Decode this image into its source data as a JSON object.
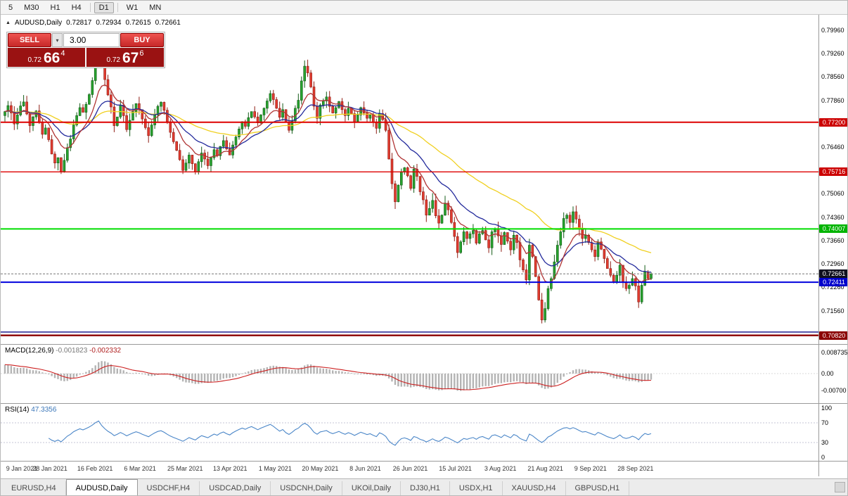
{
  "toolbar": {
    "timeframe_groups": [
      [
        "5",
        "M30",
        "H1",
        "H4"
      ],
      [
        "D1"
      ],
      [
        "W1",
        "MN"
      ]
    ],
    "active_timeframe": "D1"
  },
  "chart_header": {
    "symbol": "AUDUSD,Daily",
    "open": "0.72817",
    "high": "0.72934",
    "low": "0.72615",
    "close": "0.72661"
  },
  "trade_panel": {
    "sell_label": "SELL",
    "buy_label": "BUY",
    "volume": "3.00",
    "sell_price": {
      "prefix": "0.72",
      "big": "66",
      "sup": "4"
    },
    "buy_price": {
      "prefix": "0.72",
      "big": "67",
      "sup": "6"
    }
  },
  "price_axis": {
    "labels": [
      "0.79960",
      "0.79260",
      "0.78560",
      "0.77860",
      "0.77160",
      "0.76460",
      "0.75760",
      "0.75060",
      "0.74360",
      "0.73660",
      "0.72960",
      "0.72260",
      "0.71560"
    ]
  },
  "levels": [
    {
      "value": 0.772,
      "color": "#dd0000",
      "width": 2,
      "badge": "0.77200",
      "badge_bg": "#cc0000"
    },
    {
      "value": 0.75716,
      "color": "#dd0000",
      "width": 1.3,
      "badge": "0.75716",
      "badge_bg": "#cc0000"
    },
    {
      "value": 0.74007,
      "color": "#00dd00",
      "width": 2,
      "badge": "0.74007",
      "badge_bg": "#00b400"
    },
    {
      "value": 0.72411,
      "color": "#0000dd",
      "width": 2,
      "badge": "0.72411",
      "badge_bg": "#0000cc"
    },
    {
      "value": 0.7092,
      "color": "#30309a",
      "width": 1.6
    },
    {
      "value": 0.7082,
      "color": "#8b0000",
      "width": 2.4,
      "badge": "0.70820",
      "badge_bg": "#8b0000"
    }
  ],
  "current_price": {
    "value": 0.72661,
    "label": "0.72661",
    "badge_bg": "#10101e"
  },
  "macd_panel": {
    "name": "MACD(12,26,9)",
    "main_value": "-0.001823",
    "signal_value": "-0.002332",
    "axis": [
      "0.008735",
      "0.00",
      "-0.00700"
    ]
  },
  "rsi_panel": {
    "name": "RSI(14)",
    "value": "47.3356",
    "axis": [
      "100",
      "70",
      "30",
      "0"
    ],
    "levels": [
      70,
      30
    ]
  },
  "date_axis": [
    "9 Jan 2021",
    "28 Jan 2021",
    "16 Feb 2021",
    "6 Mar 2021",
    "25 Mar 2021",
    "13 Apr 2021",
    "1 May 2021",
    "20 May 2021",
    "8 Jun 2021",
    "26 Jun 2021",
    "15 Jul 2021",
    "3 Aug 2021",
    "21 Aug 2021",
    "9 Sep 2021",
    "28 Sep 2021"
  ],
  "tabs": {
    "items": [
      "EURUSD,H4",
      "AUDUSD,Daily",
      "USDCHF,H4",
      "USDCAD,Daily",
      "USDCNH,Daily",
      "UKOil,Daily",
      "DJ30,H1",
      "USDX,H1",
      "XAUUSD,H4",
      "GBPUSD,H1"
    ],
    "active_index": 1
  },
  "chart_data": {
    "type": "candlestick",
    "symbol": "AUDUSD",
    "timeframe": "Daily",
    "price_range": [
      0.7056,
      0.8042
    ],
    "macd_scale_max": 0.011,
    "moving_averages": [
      {
        "period": 55,
        "color": "#f0d020"
      },
      {
        "period": 21,
        "color": "#232a9c"
      },
      {
        "period": 10,
        "color": "#b03434"
      }
    ],
    "colors": {
      "up": "#27a22e",
      "up_border": "#145c18",
      "down": "#e13b2f",
      "down_border": "#8f1d14",
      "macd_hist": "#b4b4b4",
      "macd_signal": "#cc2020",
      "rsi": "#4a86c8"
    },
    "closes": [
      0.7752,
      0.777,
      0.7748,
      0.7715,
      0.7742,
      0.7769,
      0.7781,
      0.7745,
      0.771,
      0.7736,
      0.7754,
      0.772,
      0.7684,
      0.7703,
      0.7668,
      0.7625,
      0.7598,
      0.7614,
      0.7572,
      0.7606,
      0.7644,
      0.767,
      0.7712,
      0.774,
      0.7764,
      0.775,
      0.7774,
      0.7803,
      0.7845,
      0.7905,
      0.7962,
      0.79,
      0.7848,
      0.7802,
      0.7766,
      0.771,
      0.7736,
      0.7772,
      0.774,
      0.7698,
      0.7726,
      0.7752,
      0.7776,
      0.7758,
      0.773,
      0.7704,
      0.768,
      0.7712,
      0.7742,
      0.7768,
      0.778,
      0.7756,
      0.7722,
      0.769,
      0.7662,
      0.7636,
      0.7608,
      0.7576,
      0.7598,
      0.7622,
      0.7596,
      0.7572,
      0.7602,
      0.7628,
      0.761,
      0.759,
      0.7614,
      0.7638,
      0.762,
      0.7648,
      0.7665,
      0.764,
      0.7622,
      0.7652,
      0.7676,
      0.77,
      0.7722,
      0.7708,
      0.7734,
      0.7752,
      0.7736,
      0.7718,
      0.7742,
      0.7762,
      0.7784,
      0.7806,
      0.7788,
      0.7762,
      0.7735,
      0.7758,
      0.772,
      0.7696,
      0.7724,
      0.7762,
      0.7786,
      0.7844,
      0.7888,
      0.7868,
      0.7826,
      0.7768,
      0.7732,
      0.7772,
      0.7784,
      0.7796,
      0.7768,
      0.7748,
      0.7764,
      0.7782,
      0.7758,
      0.774,
      0.7762,
      0.7746,
      0.7722,
      0.7742,
      0.7764,
      0.7748,
      0.7732,
      0.7742,
      0.772,
      0.7702,
      0.7746,
      0.7728,
      0.7696,
      0.761,
      0.7536,
      0.7482,
      0.7532,
      0.7572,
      0.7584,
      0.756,
      0.7522,
      0.758,
      0.7558,
      0.7512,
      0.7488,
      0.7442,
      0.7462,
      0.7486,
      0.744,
      0.7418,
      0.7442,
      0.7478,
      0.7458,
      0.742,
      0.7378,
      0.733,
      0.7362,
      0.7392,
      0.7372,
      0.7386,
      0.7396,
      0.7358,
      0.7386,
      0.7396,
      0.7368,
      0.7344,
      0.7392,
      0.7402,
      0.738,
      0.7354,
      0.739,
      0.7364,
      0.7338,
      0.7382,
      0.736,
      0.7308,
      0.7278,
      0.7248,
      0.7352,
      0.7318,
      0.7258,
      0.7188,
      0.7128,
      0.7162,
      0.7222,
      0.7252,
      0.7302,
      0.7352,
      0.7392,
      0.7432,
      0.7442,
      0.742,
      0.7452,
      0.743,
      0.74,
      0.7372,
      0.7382,
      0.736,
      0.7338,
      0.7318,
      0.7362,
      0.734,
      0.7312,
      0.7282,
      0.7262,
      0.724,
      0.7262,
      0.7292,
      0.7242,
      0.7222,
      0.7232,
      0.7252,
      0.723,
      0.7182,
      0.7232,
      0.7272,
      0.7252,
      0.7266
    ]
  }
}
